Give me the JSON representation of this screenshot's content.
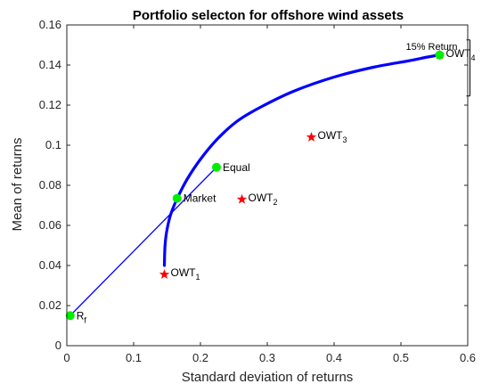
{
  "chart_data": {
    "type": "line",
    "title": "Portfolio selecton for offshore wind assets",
    "xlabel": "Standard deviation of returns",
    "ylabel": "Mean of returns",
    "xlim": [
      0,
      0.6
    ],
    "ylim": [
      0,
      0.16
    ],
    "xticks": [
      "0",
      "0.1",
      "0.2",
      "0.3",
      "0.4",
      "0.5",
      "0.6"
    ],
    "yticks": [
      "0",
      "0.02",
      "0.04",
      "0.06",
      "0.08",
      "0.1",
      "0.12",
      "0.14",
      "0.16"
    ],
    "grid": false,
    "colors": {
      "frontier": "#0000ff",
      "assets": "#ff0000",
      "portfolios": "#00ee00",
      "text": "#000000"
    },
    "frontier": {
      "x": [
        0.146,
        0.147,
        0.15,
        0.156,
        0.166,
        0.18,
        0.2,
        0.225,
        0.255,
        0.29,
        0.34,
        0.4,
        0.46,
        0.51,
        0.54,
        0.558
      ],
      "y": [
        0.04,
        0.05,
        0.058,
        0.066,
        0.074,
        0.083,
        0.093,
        0.103,
        0.112,
        0.119,
        0.127,
        0.134,
        0.139,
        0.142,
        0.144,
        0.145
      ]
    },
    "capital_market_line": {
      "x": [
        0.005,
        0.224
      ],
      "y": [
        0.015,
        0.089
      ]
    },
    "assets": [
      {
        "label": "OWT",
        "sub": "1",
        "x": 0.146,
        "y": 0.0355
      },
      {
        "label": "OWT",
        "sub": "2",
        "x": 0.262,
        "y": 0.073
      },
      {
        "label": "OWT",
        "sub": "3",
        "x": 0.366,
        "y": 0.104
      },
      {
        "label": "OWT",
        "sub": "4",
        "x": 0.558,
        "y": 0.145
      }
    ],
    "portfolios": [
      {
        "label": "R",
        "sub": "f",
        "x": 0.005,
        "y": 0.015
      },
      {
        "label": "Market",
        "sub": "",
        "x": 0.165,
        "y": 0.0735
      },
      {
        "label": "Equal",
        "sub": "",
        "x": 0.224,
        "y": 0.089
      },
      {
        "label": "",
        "sub": "",
        "x": 0.558,
        "y": 0.145
      }
    ],
    "annotation": {
      "text": "15% Return",
      "x": 0.558,
      "y": 0.145
    }
  }
}
